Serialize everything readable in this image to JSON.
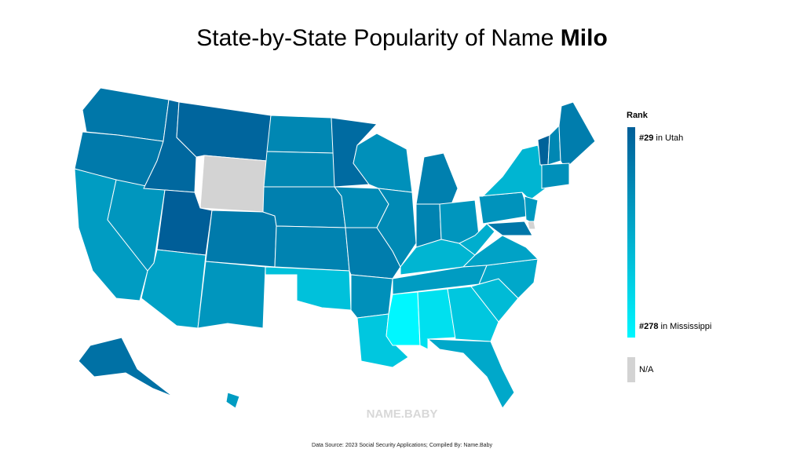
{
  "map": {
    "title": "State-by-State Popularity of Name ",
    "title_name": "Milo",
    "legend": {
      "title": "Rank",
      "high": {
        "value": 29,
        "label": "#29",
        "text": "in Utah",
        "color": "#005e98"
      },
      "low": {
        "value": 278,
        "label": "#278",
        "text": "in Mississippi",
        "color": "#00f7ff"
      },
      "na": "N/A",
      "na_color": "#d3d3d3"
    },
    "values": [
      70,
      75,
      130,
      120,
      45,
      40,
      null,
      29,
      140,
      75,
      120,
      95,
      95,
      85,
      90,
      190,
      50,
      100,
      80,
      110,
      200,
      110,
      100,
      85,
      90,
      120,
      170,
      278,
      240,
      200,
      150,
      180,
      150,
      140,
      160,
      130,
      115,
      170,
      125,
      35,
      95,
      80,
      110,
      60,
      130,
      70,
      null
    ],
    "watermark": "NAME.BABY",
    "source": "Data Source: 2023 Social Security Applications; Compiled By: Name.Baby"
  }
}
